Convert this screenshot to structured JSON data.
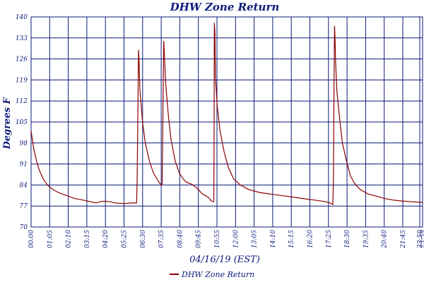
{
  "chart_data": {
    "type": "line",
    "title": "DHW Zone Return",
    "xlabel": "04/16/19 (EST)",
    "ylabel": "Degrees F",
    "ylim": [
      70,
      140
    ],
    "yticks": [
      "70",
      "77",
      "84",
      "91",
      "98",
      "105",
      "112",
      "119",
      "126",
      "133",
      "140"
    ],
    "xlim": [
      0,
      1440
    ],
    "xticks": [
      "00:00",
      "01:05",
      "02:10",
      "03:15",
      "04:20",
      "05:25",
      "06:30",
      "07:35",
      "08:40",
      "09:45",
      "10:55",
      "12:00",
      "13:05",
      "14:10",
      "15:15",
      "16:20",
      "17:25",
      "18:30",
      "19:35",
      "20:40",
      "21:45",
      "23:50",
      "23:59"
    ],
    "grid": true,
    "legend_position": "bottom-left",
    "colors": {
      "line": "#8b0000",
      "grid": "#0c1a7a",
      "text": "#0c1a7a"
    },
    "series": [
      {
        "name": "DHW Zone Return",
        "points": [
          [
            0,
            102
          ],
          [
            5,
            99
          ],
          [
            10,
            96
          ],
          [
            20,
            92
          ],
          [
            30,
            89
          ],
          [
            45,
            86
          ],
          [
            60,
            84
          ],
          [
            80,
            82.5
          ],
          [
            100,
            81.5
          ],
          [
            130,
            80.5
          ],
          [
            160,
            79.5
          ],
          [
            190,
            79
          ],
          [
            215,
            78.5
          ],
          [
            240,
            78
          ],
          [
            255,
            78.5
          ],
          [
            270,
            78.6
          ],
          [
            290,
            78.4
          ],
          [
            310,
            78
          ],
          [
            340,
            77.8
          ],
          [
            370,
            78
          ],
          [
            388,
            78
          ],
          [
            390,
            85
          ],
          [
            393,
            110
          ],
          [
            395,
            129
          ],
          [
            397,
            126
          ],
          [
            400,
            116
          ],
          [
            410,
            105
          ],
          [
            420,
            98
          ],
          [
            435,
            92
          ],
          [
            450,
            88
          ],
          [
            470,
            85
          ],
          [
            478,
            84
          ],
          [
            482,
            84
          ],
          [
            484,
            100
          ],
          [
            486,
            118
          ],
          [
            488,
            132
          ],
          [
            490,
            128
          ],
          [
            495,
            118
          ],
          [
            505,
            107
          ],
          [
            515,
            99
          ],
          [
            530,
            92
          ],
          [
            545,
            88
          ],
          [
            560,
            86
          ],
          [
            570,
            85
          ],
          [
            580,
            84.6
          ],
          [
            590,
            84.3
          ],
          [
            610,
            83
          ],
          [
            630,
            81
          ],
          [
            650,
            80
          ],
          [
            665,
            78.5
          ],
          [
            672,
            78.5
          ],
          [
            673,
            95
          ],
          [
            674,
            138
          ],
          [
            676,
            135
          ],
          [
            678,
            120
          ],
          [
            685,
            110
          ],
          [
            695,
            102
          ],
          [
            710,
            95
          ],
          [
            725,
            90
          ],
          [
            745,
            86
          ],
          [
            770,
            84
          ],
          [
            800,
            82.5
          ],
          [
            840,
            81.5
          ],
          [
            880,
            81
          ],
          [
            920,
            80.5
          ],
          [
            960,
            80
          ],
          [
            1000,
            79.5
          ],
          [
            1040,
            79
          ],
          [
            1080,
            78.5
          ],
          [
            1100,
            78
          ],
          [
            1110,
            77.5
          ],
          [
            1112,
            85
          ],
          [
            1114,
            115
          ],
          [
            1116,
            137
          ],
          [
            1118,
            133
          ],
          [
            1120,
            125
          ],
          [
            1125,
            115
          ],
          [
            1135,
            106
          ],
          [
            1145,
            98
          ],
          [
            1160,
            92
          ],
          [
            1175,
            87
          ],
          [
            1190,
            84.5
          ],
          [
            1210,
            82.5
          ],
          [
            1240,
            81
          ],
          [
            1270,
            80.3
          ],
          [
            1300,
            79.5
          ],
          [
            1330,
            79
          ],
          [
            1360,
            78.7
          ],
          [
            1400,
            78.4
          ],
          [
            1440,
            78.2
          ]
        ]
      }
    ]
  }
}
